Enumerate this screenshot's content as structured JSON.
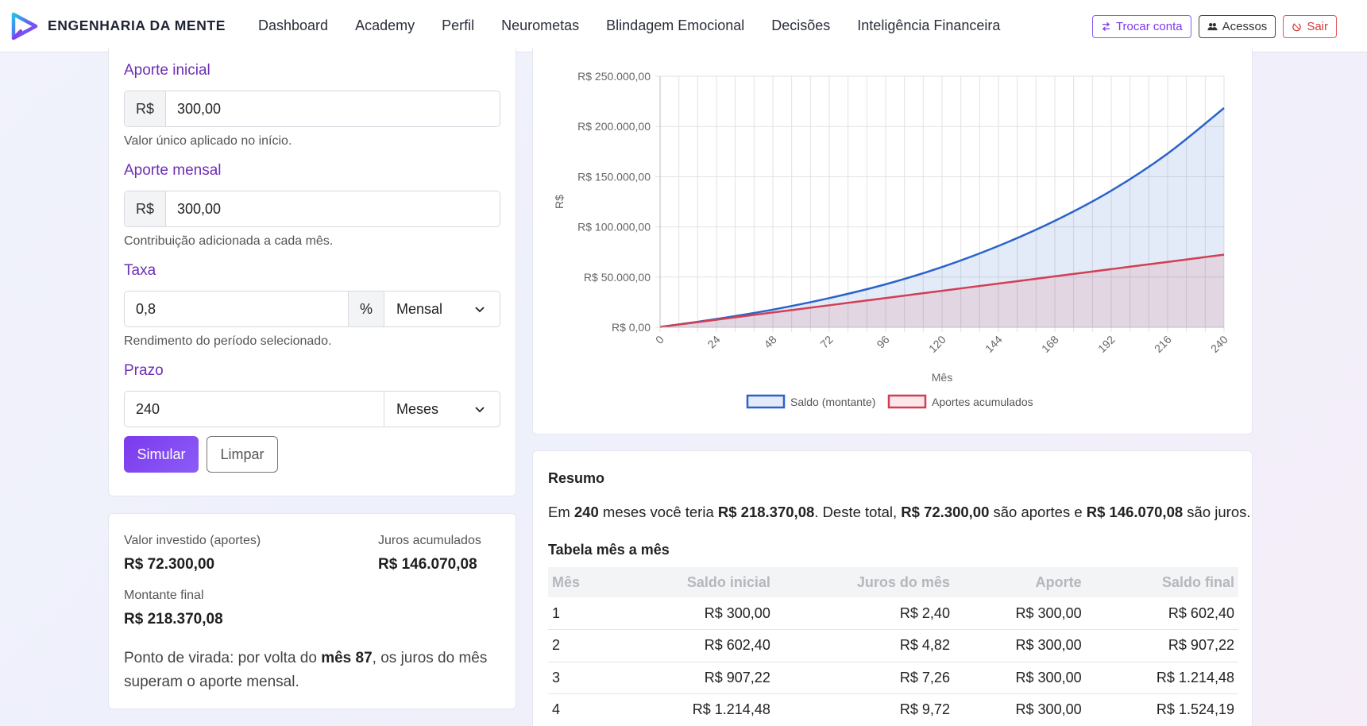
{
  "brand": {
    "name": "ENGENHARIA DA MENTE"
  },
  "nav": {
    "links": [
      "Dashboard",
      "Academy",
      "Perfil",
      "Neurometas",
      "Blindagem Emocional",
      "Decisões",
      "Inteligência Financeira"
    ],
    "actions": {
      "switch": "Trocar conta",
      "access": "Acessos",
      "logout": "Sair"
    }
  },
  "form": {
    "initial": {
      "label": "Aporte inicial",
      "prefix": "R$",
      "value": "300,00",
      "help": "Valor único aplicado no início."
    },
    "monthly": {
      "label": "Aporte mensal",
      "prefix": "R$",
      "value": "300,00",
      "help": "Contribuição adicionada a cada mês."
    },
    "rate": {
      "label": "Taxa",
      "value": "0,8",
      "unit": "%",
      "period": "Mensal",
      "help": "Rendimento do período selecionado."
    },
    "term": {
      "label": "Prazo",
      "value": "240",
      "unit": "Meses"
    },
    "simulate": "Simular",
    "clear": "Limpar"
  },
  "summary": {
    "invested_label": "Valor investido (aportes)",
    "invested_value": "R$ 72.300,00",
    "interest_label": "Juros acumulados",
    "interest_value": "R$ 146.070,08",
    "final_label": "Montante final",
    "final_value": "R$ 218.370,08",
    "turn_prefix": "Ponto de virada: por volta do ",
    "turn_bold": "mês 87",
    "turn_suffix": ", os juros do mês superam o aporte mensal."
  },
  "chart_data": {
    "type": "area",
    "xlabel": "Mês",
    "ylabel": "R$",
    "xlim": [
      0,
      240
    ],
    "ylim": [
      0,
      250000
    ],
    "x_ticks": [
      "0",
      "24",
      "48",
      "72",
      "96",
      "120",
      "144",
      "168",
      "192",
      "216",
      "240"
    ],
    "y_ticks": [
      "R$ 0,00",
      "R$ 50.000,00",
      "R$ 100.000,00",
      "R$ 150.000,00",
      "R$ 200.000,00",
      "R$ 250.000,00"
    ],
    "grid": true,
    "legend": "bottom",
    "x": [
      0,
      24,
      48,
      72,
      96,
      120,
      144,
      168,
      192,
      216,
      240
    ],
    "series": [
      {
        "name": "Saldo (montante)",
        "color": "#2b63c9",
        "values": [
          300,
          8261,
          17563,
          29033,
          42828,
          60000,
          81000,
          106000,
          136000,
          173000,
          218370
        ]
      },
      {
        "name": "Aportes acumulados",
        "color": "#d23f55",
        "values": [
          300,
          7500,
          14700,
          21900,
          29100,
          36300,
          43500,
          50700,
          57900,
          65100,
          72300
        ]
      }
    ]
  },
  "resumo": {
    "title": "Resumo",
    "t1": "Em ",
    "b1": "240",
    "t2": " meses você teria ",
    "b2": "R$ 218.370,08",
    "t3": ". Deste total, ",
    "b3": "R$ 72.300,00",
    "t4": " são aportes e ",
    "b4": "R$ 146.070,08",
    "t5": " são juros."
  },
  "table": {
    "title": "Tabela mês a mês",
    "headers": [
      "Mês",
      "Saldo inicial",
      "Juros do mês",
      "Aporte",
      "Saldo final"
    ],
    "rows": [
      [
        "1",
        "R$ 300,00",
        "R$ 2,40",
        "R$ 300,00",
        "R$ 602,40"
      ],
      [
        "2",
        "R$ 602,40",
        "R$ 4,82",
        "R$ 300,00",
        "R$ 907,22"
      ],
      [
        "3",
        "R$ 907,22",
        "R$ 7,26",
        "R$ 300,00",
        "R$ 1.214,48"
      ],
      [
        "4",
        "R$ 1.214,48",
        "R$ 9,72",
        "R$ 300,00",
        "R$ 1.524,19"
      ]
    ]
  }
}
